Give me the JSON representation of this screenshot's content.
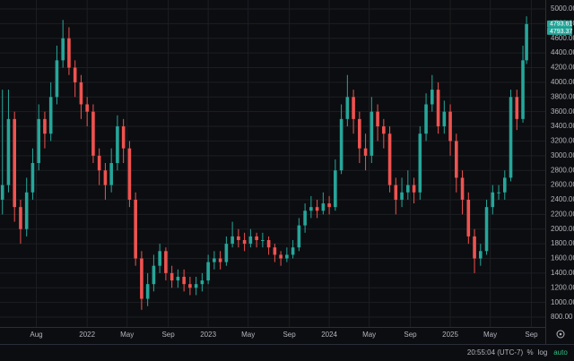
{
  "chart_data": {
    "type": "candlestick",
    "x": [
      2021.3,
      2021.35,
      2021.4,
      2021.45,
      2021.5,
      2021.55,
      2021.6,
      2021.65,
      2021.7,
      2021.75,
      2021.8,
      2021.85,
      2021.9,
      2021.95,
      2022.0,
      2022.05,
      2022.1,
      2022.15,
      2022.2,
      2022.25,
      2022.3,
      2022.35,
      2022.4,
      2022.45,
      2022.5,
      2022.55,
      2022.6,
      2022.65,
      2022.7,
      2022.75,
      2022.8,
      2022.85,
      2022.9,
      2022.95,
      2023.0,
      2023.05,
      2023.1,
      2023.15,
      2023.2,
      2023.25,
      2023.3,
      2023.35,
      2023.4,
      2023.45,
      2023.5,
      2023.55,
      2023.6,
      2023.65,
      2023.7,
      2023.75,
      2023.8,
      2023.85,
      2023.9,
      2023.95,
      2024.0,
      2024.05,
      2024.1,
      2024.15,
      2024.2,
      2024.25,
      2024.3,
      2024.35,
      2024.4,
      2024.45,
      2024.5,
      2024.55,
      2024.6,
      2024.65,
      2024.7,
      2024.75,
      2024.8,
      2024.85,
      2024.9,
      2024.95,
      2025.0,
      2025.05,
      2025.1,
      2025.15,
      2025.2,
      2025.25,
      2025.3,
      2025.35,
      2025.4,
      2025.45,
      2025.5,
      2025.55,
      2025.6,
      2025.63
    ],
    "open": [
      2400,
      2600,
      3500,
      2300,
      2000,
      2500,
      2900,
      3500,
      3300,
      3800,
      4300,
      4600,
      4200,
      4000,
      3700,
      3600,
      3000,
      2800,
      2600,
      2900,
      3400,
      3100,
      2400,
      1600,
      1050,
      1250,
      1500,
      1700,
      1400,
      1300,
      1350,
      1250,
      1200,
      1250,
      1300,
      1550,
      1600,
      1550,
      1800,
      1900,
      1850,
      1800,
      1900,
      1850,
      1850,
      1750,
      1650,
      1600,
      1650,
      1750,
      2050,
      2250,
      2300,
      2250,
      2350,
      2300,
      2800,
      3500,
      3800,
      3500,
      3100,
      3000,
      3600,
      3400,
      3300,
      2600,
      2400,
      2500,
      2600,
      2500,
      3300,
      3700,
      3900,
      3400,
      3600,
      3200,
      2700,
      2400,
      1900,
      1600,
      1700,
      2300,
      2500,
      2500,
      2700,
      3800,
      3500,
      4300
    ],
    "high": [
      3900,
      3900,
      3600,
      2400,
      2700,
      3100,
      3700,
      3600,
      4000,
      4500,
      4850,
      4750,
      4300,
      4100,
      3800,
      3700,
      3100,
      2900,
      3100,
      3550,
      3500,
      3200,
      2500,
      1700,
      1400,
      1650,
      1800,
      1750,
      1500,
      1450,
      1450,
      1350,
      1350,
      1400,
      1650,
      1700,
      1700,
      1900,
      2100,
      2000,
      1950,
      2000,
      1950,
      1950,
      1900,
      1800,
      1700,
      1750,
      1850,
      2150,
      2350,
      2450,
      2400,
      2500,
      2450,
      2950,
      3700,
      4100,
      3900,
      3600,
      3300,
      3800,
      3700,
      3500,
      3400,
      2700,
      2700,
      2800,
      2700,
      3400,
      3850,
      4100,
      4000,
      3750,
      3700,
      3300,
      2800,
      2500,
      2000,
      1800,
      2400,
      2600,
      2600,
      2800,
      3900,
      3900,
      4500,
      4900
    ],
    "low": [
      2200,
      2500,
      2100,
      1800,
      1900,
      2400,
      2800,
      3100,
      3200,
      3700,
      4200,
      4100,
      3800,
      3500,
      3400,
      2900,
      2600,
      2400,
      2500,
      2800,
      2900,
      2300,
      1500,
      900,
      950,
      1150,
      1400,
      1300,
      1200,
      1200,
      1150,
      1100,
      1100,
      1150,
      1250,
      1450,
      1450,
      1500,
      1750,
      1750,
      1700,
      1750,
      1750,
      1750,
      1650,
      1550,
      1500,
      1550,
      1600,
      1700,
      1950,
      2150,
      2150,
      2200,
      2200,
      2250,
      2750,
      3400,
      3300,
      2900,
      2800,
      2900,
      3200,
      3100,
      2500,
      2200,
      2300,
      2400,
      2350,
      2400,
      3200,
      3600,
      3300,
      3300,
      3000,
      2500,
      2200,
      1800,
      1400,
      1500,
      1650,
      2200,
      2400,
      2400,
      2650,
      3350,
      3450,
      4250
    ],
    "close": [
      2600,
      3500,
      2300,
      2000,
      2500,
      2900,
      3500,
      3300,
      3800,
      4300,
      4600,
      4200,
      4000,
      3700,
      3600,
      3000,
      2800,
      2600,
      2900,
      3400,
      3100,
      2400,
      1600,
      1050,
      1250,
      1500,
      1700,
      1400,
      1300,
      1350,
      1250,
      1200,
      1250,
      1300,
      1550,
      1600,
      1550,
      1800,
      1900,
      1850,
      1800,
      1900,
      1850,
      1850,
      1750,
      1650,
      1600,
      1650,
      1750,
      2050,
      2250,
      2300,
      2250,
      2350,
      2300,
      2800,
      3500,
      3800,
      3500,
      3100,
      3000,
      3600,
      3400,
      3300,
      2600,
      2400,
      2500,
      2600,
      2500,
      3300,
      3700,
      3900,
      3400,
      3600,
      3200,
      2700,
      2400,
      1900,
      1600,
      1700,
      2300,
      2500,
      2500,
      2700,
      3800,
      3500,
      4300,
      4793.37
    ],
    "up_color": "#26a69a",
    "down_color": "#ef5350",
    "xlim": [
      2021.28,
      2025.785
    ],
    "xticks": [
      {
        "value": 2021.58,
        "label": "Aug"
      },
      {
        "value": 2022,
        "label": "2022"
      },
      {
        "value": 2022.33,
        "label": "May"
      },
      {
        "value": 2022.67,
        "label": "Sep"
      },
      {
        "value": 2023,
        "label": "2023"
      },
      {
        "value": 2023.33,
        "label": "May"
      },
      {
        "value": 2023.67,
        "label": "Sep"
      },
      {
        "value": 2024,
        "label": "2024"
      },
      {
        "value": 2024.33,
        "label": "May"
      },
      {
        "value": 2024.67,
        "label": "Sep"
      },
      {
        "value": 2025,
        "label": "2025"
      },
      {
        "value": 2025.33,
        "label": "May"
      },
      {
        "value": 2025.67,
        "label": "Sep"
      }
    ],
    "ylim": [
      666,
      5122
    ],
    "yticks": [
      {
        "value": 800,
        "label": "800.00"
      },
      {
        "value": 1000,
        "label": "1000.00"
      },
      {
        "value": 1200,
        "label": "1200.00"
      },
      {
        "value": 1400,
        "label": "1400.00"
      },
      {
        "value": 1600,
        "label": "1600.00"
      },
      {
        "value": 1800,
        "label": "1800.00"
      },
      {
        "value": 2000,
        "label": "2000.00"
      },
      {
        "value": 2200,
        "label": "2200.00"
      },
      {
        "value": 2400,
        "label": "2400.00"
      },
      {
        "value": 2600,
        "label": "2600.00"
      },
      {
        "value": 2800,
        "label": "2800.00"
      },
      {
        "value": 3000,
        "label": "3000.00"
      },
      {
        "value": 3200,
        "label": "3200.00"
      },
      {
        "value": 3400,
        "label": "3400.00"
      },
      {
        "value": 3600,
        "label": "3600.00"
      },
      {
        "value": 3800,
        "label": "3800.00"
      },
      {
        "value": 4000,
        "label": "4000.00"
      },
      {
        "value": 4200,
        "label": "4200.00"
      },
      {
        "value": 4400,
        "label": "4400.00"
      },
      {
        "value": 4600,
        "label": "4600.00"
      },
      {
        "value": 4800,
        "label": "4800.00"
      },
      {
        "value": 5000,
        "label": "5000.00"
      }
    ],
    "price_labels": [
      {
        "value": 4793.61,
        "label": "4793.61"
      },
      {
        "value": 4793.37,
        "label": "4793.37"
      }
    ],
    "grid": true
  },
  "toolbar": {
    "time": "20:55:04 (UTC-7)",
    "percent": "%",
    "log": "log",
    "auto": "auto"
  }
}
